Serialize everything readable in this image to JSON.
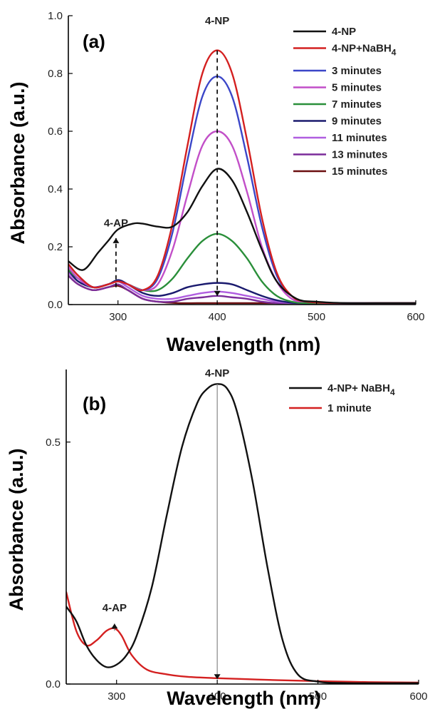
{
  "chart_data": [
    {
      "panel_label": "(a)",
      "type": "line",
      "xlabel": "Wavelength (nm)",
      "ylabel": "Absorbance (a.u.)",
      "xlim": [
        250,
        600
      ],
      "ylim": [
        0,
        1.0
      ],
      "xticks": [
        300,
        400,
        500,
        600
      ],
      "yticks": [
        0.0,
        0.2,
        0.4,
        0.6,
        0.8,
        1.0
      ],
      "ytick_labels": [
        "0.0",
        "0.2",
        "0.4",
        "0.6",
        "0.8",
        "1.0"
      ],
      "legend_position": "top-right",
      "annotations": [
        {
          "text": "4-NP",
          "x": 400,
          "y": 0.97
        },
        {
          "text": "4-AP",
          "x": 298,
          "y": 0.27
        }
      ],
      "arrows": [
        {
          "x": 400,
          "y_from": 0.88,
          "y_to": 0.03,
          "style": "dashed"
        },
        {
          "x": 298,
          "y_from": 0.06,
          "y_to": 0.23,
          "style": "dashed"
        }
      ],
      "series": [
        {
          "name": "4-NP",
          "color": "#111111",
          "x": [
            250,
            265,
            280,
            290,
            300,
            315,
            325,
            340,
            355,
            370,
            385,
            400,
            415,
            430,
            445,
            460,
            480,
            500,
            530,
            560,
            600
          ],
          "y": [
            0.15,
            0.12,
            0.18,
            0.22,
            0.26,
            0.28,
            0.28,
            0.27,
            0.27,
            0.32,
            0.41,
            0.47,
            0.43,
            0.32,
            0.19,
            0.08,
            0.02,
            0.01,
            0.005,
            0.005,
            0.005
          ]
        },
        {
          "name": "4-NP+NaBH4",
          "name_main": "4-NP+NaBH",
          "name_sub": "4",
          "color": "#d42020",
          "x": [
            250,
            260,
            275,
            290,
            300,
            310,
            325,
            340,
            355,
            370,
            385,
            400,
            415,
            430,
            445,
            460,
            475,
            490,
            520,
            560,
            600
          ],
          "y": [
            0.14,
            0.1,
            0.06,
            0.07,
            0.08,
            0.07,
            0.05,
            0.1,
            0.28,
            0.55,
            0.8,
            0.88,
            0.8,
            0.57,
            0.3,
            0.11,
            0.03,
            0.01,
            0.005,
            0.005,
            0.005
          ]
        },
        {
          "name": "3 minutes",
          "color": "#3b46c8",
          "x": [
            250,
            260,
            275,
            290,
            300,
            310,
            325,
            340,
            355,
            370,
            385,
            400,
            415,
            430,
            445,
            460,
            475,
            490,
            520,
            560,
            600
          ],
          "y": [
            0.14,
            0.1,
            0.06,
            0.07,
            0.08,
            0.07,
            0.05,
            0.09,
            0.25,
            0.5,
            0.72,
            0.79,
            0.72,
            0.51,
            0.27,
            0.1,
            0.03,
            0.01,
            0.005,
            0.005,
            0.005
          ]
        },
        {
          "name": "5 minutes",
          "color": "#c24fc8",
          "x": [
            250,
            260,
            275,
            290,
            300,
            310,
            325,
            340,
            355,
            370,
            385,
            400,
            415,
            430,
            445,
            460,
            475,
            490,
            520,
            560,
            600
          ],
          "y": [
            0.13,
            0.09,
            0.06,
            0.07,
            0.08,
            0.07,
            0.05,
            0.07,
            0.19,
            0.38,
            0.55,
            0.6,
            0.55,
            0.39,
            0.2,
            0.08,
            0.02,
            0.01,
            0.005,
            0.005,
            0.005
          ]
        },
        {
          "name": "7 minutes",
          "color": "#2a8f3a",
          "x": [
            250,
            260,
            275,
            290,
            300,
            310,
            325,
            340,
            355,
            370,
            385,
            400,
            415,
            430,
            445,
            460,
            475,
            490,
            520,
            560,
            600
          ],
          "y": [
            0.12,
            0.09,
            0.06,
            0.07,
            0.08,
            0.07,
            0.05,
            0.05,
            0.09,
            0.16,
            0.22,
            0.245,
            0.22,
            0.16,
            0.08,
            0.03,
            0.01,
            0.005,
            0.005,
            0.005,
            0.005
          ]
        },
        {
          "name": "9 minutes",
          "color": "#1a1a6e",
          "x": [
            250,
            260,
            275,
            290,
            300,
            310,
            325,
            340,
            355,
            370,
            385,
            400,
            415,
            430,
            445,
            460,
            480,
            520,
            560,
            600
          ],
          "y": [
            0.12,
            0.08,
            0.06,
            0.07,
            0.085,
            0.07,
            0.04,
            0.03,
            0.04,
            0.06,
            0.07,
            0.075,
            0.07,
            0.05,
            0.03,
            0.015,
            0.005,
            0.005,
            0.005,
            0.005
          ]
        },
        {
          "name": "11 minutes",
          "color": "#b05ee0",
          "x": [
            250,
            260,
            275,
            290,
            300,
            310,
            325,
            340,
            355,
            370,
            385,
            400,
            415,
            430,
            445,
            460,
            480,
            520,
            560,
            600
          ],
          "y": [
            0.11,
            0.08,
            0.06,
            0.07,
            0.08,
            0.06,
            0.03,
            0.02,
            0.02,
            0.03,
            0.04,
            0.045,
            0.04,
            0.03,
            0.02,
            0.01,
            0.005,
            0.005,
            0.005,
            0.005
          ]
        },
        {
          "name": "13 minutes",
          "color": "#7b2c9a",
          "x": [
            250,
            260,
            275,
            290,
            300,
            310,
            325,
            340,
            355,
            370,
            385,
            400,
            415,
            430,
            445,
            460,
            480,
            520,
            560,
            600
          ],
          "y": [
            0.1,
            0.07,
            0.05,
            0.06,
            0.07,
            0.05,
            0.02,
            0.01,
            0.01,
            0.02,
            0.025,
            0.03,
            0.025,
            0.02,
            0.01,
            0.005,
            0.005,
            0.005,
            0.005,
            0.005
          ]
        },
        {
          "name": "15 minutes",
          "color": "#6b0f10",
          "x": [
            250,
            260,
            275,
            290,
            300,
            310,
            325,
            340,
            360,
            380,
            400,
            420,
            440,
            460,
            480,
            520,
            560,
            600
          ],
          "y": [
            0.1,
            0.07,
            0.05,
            0.06,
            0.065,
            0.05,
            0.02,
            0.01,
            0.005,
            0.005,
            0.005,
            0.005,
            0.005,
            0.005,
            0.005,
            0.005,
            0.005,
            0.005
          ]
        }
      ]
    },
    {
      "panel_label": "(b)",
      "type": "line",
      "xlabel": "Wavelength (nm)",
      "ylabel": "Absorbance (a.u.)",
      "xlim": [
        250,
        600
      ],
      "ylim": [
        0,
        0.65
      ],
      "xticks": [
        300,
        400,
        500,
        600
      ],
      "yticks": [
        0.0,
        0.5
      ],
      "ytick_labels": [
        "0.0",
        "0.5"
      ],
      "legend_position": "top-right",
      "annotations": [
        {
          "text": "4-NP",
          "x": 400,
          "y": 0.635
        },
        {
          "text": "4-AP",
          "x": 298,
          "y": 0.15
        }
      ],
      "arrows": [
        {
          "x": 400,
          "y_from": 0.62,
          "y_to": 0.01,
          "style": "solid"
        },
        {
          "x": 298,
          "y_from": 0.11,
          "y_to": 0.125,
          "style": "solid"
        }
      ],
      "series": [
        {
          "name": "4-NP+ NaBH4",
          "name_main": "4-NP+ NaBH",
          "name_sub": "4",
          "color": "#111111",
          "x": [
            250,
            260,
            270,
            280,
            290,
            300,
            310,
            320,
            335,
            350,
            365,
            380,
            390,
            400,
            410,
            420,
            435,
            450,
            465,
            480,
            500,
            530,
            600
          ],
          "y": [
            0.16,
            0.13,
            0.08,
            0.05,
            0.035,
            0.04,
            0.06,
            0.1,
            0.2,
            0.35,
            0.49,
            0.58,
            0.61,
            0.62,
            0.61,
            0.56,
            0.42,
            0.24,
            0.09,
            0.02,
            0.005,
            0.002,
            0.002
          ]
        },
        {
          "name": "1 minute",
          "color": "#d42020",
          "x": [
            250,
            260,
            270,
            280,
            290,
            298,
            305,
            315,
            330,
            350,
            370,
            400,
            430,
            460,
            500,
            550,
            600
          ],
          "y": [
            0.19,
            0.11,
            0.08,
            0.09,
            0.11,
            0.115,
            0.1,
            0.06,
            0.03,
            0.02,
            0.015,
            0.012,
            0.01,
            0.008,
            0.006,
            0.004,
            0.003
          ]
        }
      ]
    }
  ]
}
